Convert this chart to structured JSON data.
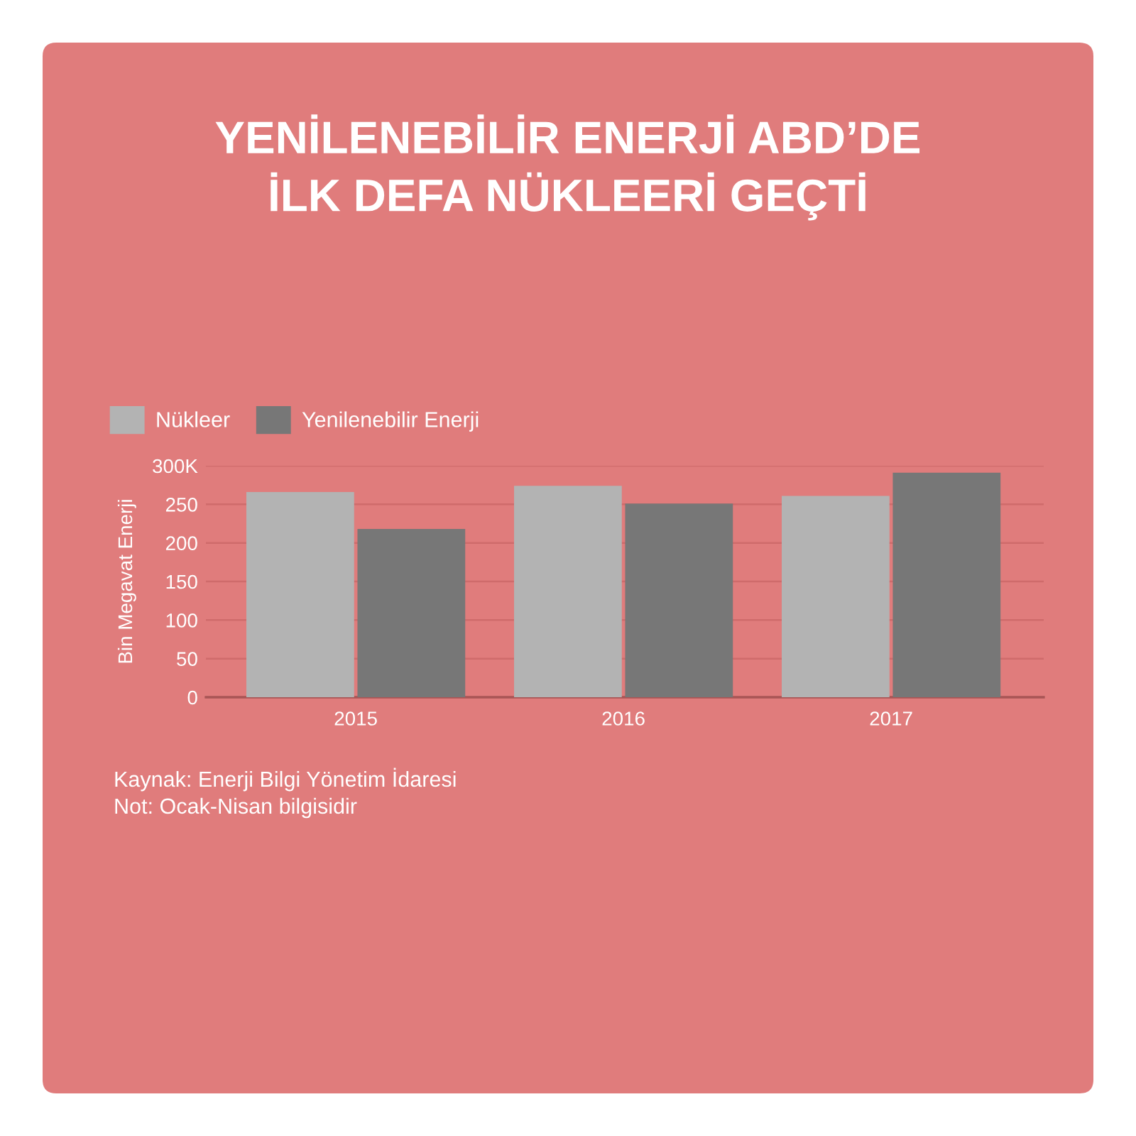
{
  "chart_data": {
    "type": "bar",
    "title": "YENİLENEBİLİR ENERJİ ABD’DE\nİLK DEFA NÜKLEERİ GEÇTİ",
    "ylabel": "Bin Megavat Enerji",
    "categories": [
      "2015",
      "2016",
      "2017"
    ],
    "series": [
      {
        "name": "Nükleer",
        "color": "#b3b3b3",
        "values": [
          266,
          274,
          261
        ]
      },
      {
        "name": "Yenilenebilir Enerji",
        "color": "#777777",
        "values": [
          218,
          251,
          291
        ]
      }
    ],
    "ylim": [
      0,
      300
    ],
    "yticks": [
      0,
      50,
      100,
      150,
      200,
      250,
      {
        "value": 300,
        "label": "300K"
      }
    ],
    "grid": "y",
    "legend": "top left",
    "annotations": [
      "Kaynak: Enerji Bilgi Yönetim İdaresi",
      "Not: Ocak-Nisan bilgisidir"
    ]
  }
}
